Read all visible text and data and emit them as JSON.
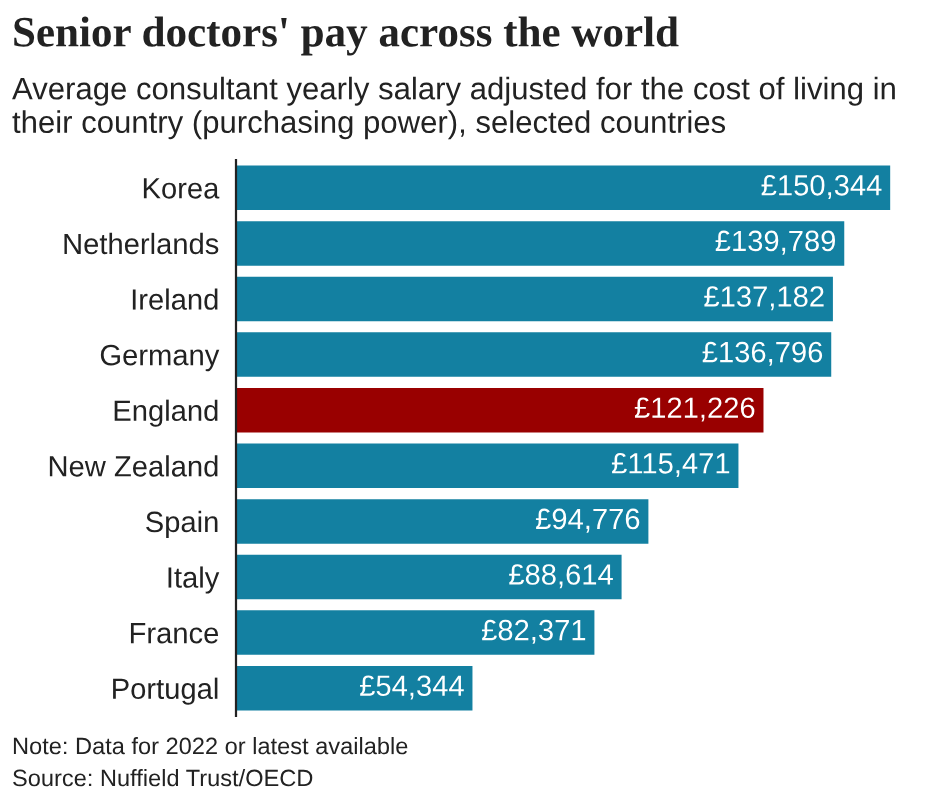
{
  "chart_data": {
    "type": "bar",
    "orientation": "horizontal",
    "title": "Senior doctors' pay across the world",
    "subtitle": "Average consultant yearly salary adjusted for the cost of living in their country (purchasing power), selected countries",
    "categories": [
      "Korea",
      "Netherlands",
      "Ireland",
      "Germany",
      "England",
      "New Zealand",
      "Spain",
      "Italy",
      "France",
      "Portugal"
    ],
    "values": [
      150344,
      139789,
      137182,
      136796,
      121226,
      115471,
      94776,
      88614,
      82371,
      54344
    ],
    "value_labels": [
      "£150,344",
      "£139,789",
      "£137,182",
      "£136,796",
      "£121,226",
      "£115,471",
      "£94,776",
      "£88,614",
      "£82,371",
      "£54,344"
    ],
    "colors": [
      "#1380a1",
      "#1380a1",
      "#1380a1",
      "#1380a1",
      "#990000",
      "#1380a1",
      "#1380a1",
      "#1380a1",
      "#1380a1",
      "#1380a1"
    ],
    "annotations": [
      "Note: Data for 2022 or latest available",
      "Source: Nuffield Trust/OECD"
    ],
    "grid": false,
    "legend": false
  }
}
